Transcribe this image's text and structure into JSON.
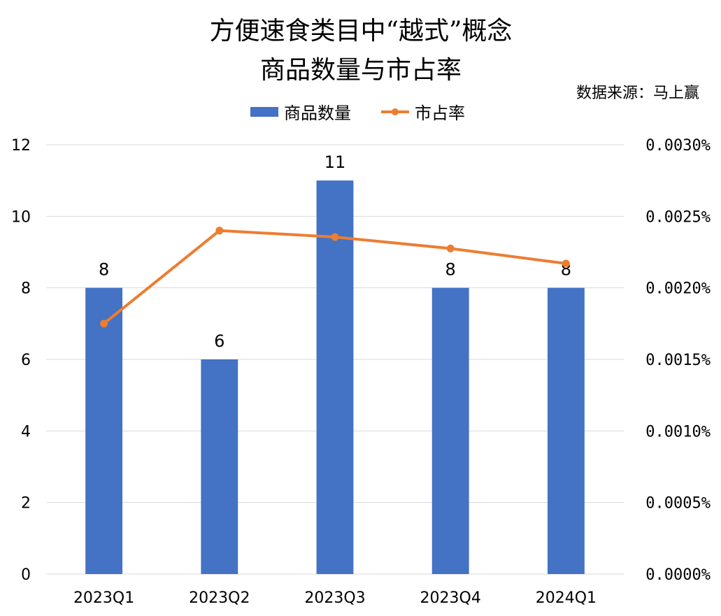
{
  "chart_data": {
    "type": "bar",
    "title_lines": [
      "方便速食类目中“越式”概念",
      "商品数量与市占率"
    ],
    "source": "数据来源：马上赢",
    "categories": [
      "2023Q1",
      "2023Q2",
      "2023Q3",
      "2023Q4",
      "2024Q1"
    ],
    "series": [
      {
        "name": "商品数量",
        "type": "bar",
        "axis": "left",
        "color": "#4472C4",
        "values": [
          8,
          6,
          11,
          8,
          8
        ],
        "data_labels": [
          "8",
          "6",
          "11",
          "8",
          "8"
        ]
      },
      {
        "name": "市占率",
        "type": "line",
        "axis": "right",
        "color": "#ED7D31",
        "values": [
          0.00175,
          0.0024,
          0.002355,
          0.002275,
          0.00217
        ]
      }
    ],
    "y_left": {
      "min": 0,
      "max": 12,
      "ticks": [
        "0",
        "2",
        "4",
        "6",
        "8",
        "10",
        "12"
      ]
    },
    "y_right": {
      "min": 0,
      "max": 0.003,
      "ticks": [
        "0.0000%",
        "0.0005%",
        "0.0010%",
        "0.0015%",
        "0.0020%",
        "0.0025%",
        "0.0030%"
      ]
    },
    "legend_position": "top",
    "grid": true
  }
}
